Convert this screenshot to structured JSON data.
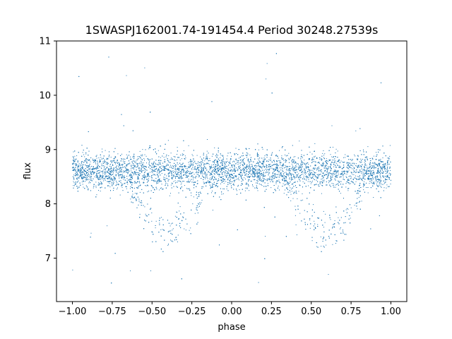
{
  "chart_data": {
    "type": "scatter",
    "title": "1SWASPJ162001.74-191454.4 Period 30248.27539s",
    "xlabel": "phase",
    "ylabel": "flux",
    "xlim": [
      -1.1,
      1.1
    ],
    "ylim": [
      6.2,
      11.0
    ],
    "xticks": [
      -1.0,
      -0.75,
      -0.5,
      -0.25,
      0.0,
      0.25,
      0.5,
      0.75,
      1.0
    ],
    "xtick_labels": [
      "−1.00",
      "−0.75",
      "−0.50",
      "−0.25",
      "0.00",
      "0.25",
      "0.50",
      "0.75",
      "1.00"
    ],
    "yticks": [
      7,
      8,
      9,
      10,
      11
    ],
    "ytick_labels": [
      "7",
      "8",
      "9",
      "10",
      "11"
    ],
    "grid": false,
    "series": [
      {
        "color": "#1f77b4",
        "phase_range": [
          -1.0,
          1.0
        ],
        "baseline_flux": 8.6,
        "baseline_spread": 0.17,
        "eclipse_centers": [
          -0.4,
          0.6
        ],
        "eclipse_min_flux": 7.2,
        "eclipse_half_width": 0.3,
        "outlier_flux_range": [
          6.5,
          10.8
        ]
      }
    ]
  }
}
